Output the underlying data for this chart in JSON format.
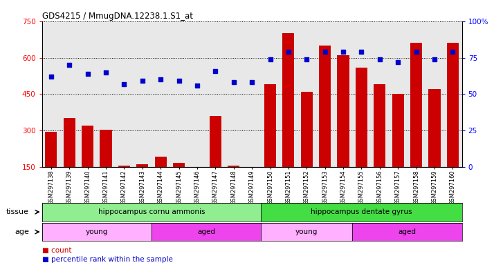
{
  "title": "GDS4215 / MmugDNA.12238.1.S1_at",
  "samples": [
    "GSM297138",
    "GSM297139",
    "GSM297140",
    "GSM297141",
    "GSM297142",
    "GSM297143",
    "GSM297144",
    "GSM297145",
    "GSM297146",
    "GSM297147",
    "GSM297148",
    "GSM297149",
    "GSM297150",
    "GSM297151",
    "GSM297152",
    "GSM297153",
    "GSM297154",
    "GSM297155",
    "GSM297156",
    "GSM297157",
    "GSM297158",
    "GSM297159",
    "GSM297160"
  ],
  "count": [
    296,
    352,
    320,
    302,
    155,
    162,
    192,
    166,
    148,
    360,
    155,
    148,
    490,
    700,
    460,
    650,
    610,
    560,
    490,
    450,
    660,
    470,
    660
  ],
  "percentile": [
    62,
    70,
    64,
    65,
    57,
    59,
    60,
    59,
    56,
    66,
    58,
    58,
    74,
    79,
    74,
    79,
    79,
    79,
    74,
    72,
    79,
    74,
    79
  ],
  "ylim_left": [
    150,
    750
  ],
  "ylim_right": [
    0,
    100
  ],
  "yticks_left": [
    150,
    300,
    450,
    600,
    750
  ],
  "yticks_right": [
    0,
    25,
    50,
    75,
    100
  ],
  "ytick_labels_left": [
    "150",
    "300",
    "450",
    "600",
    "750"
  ],
  "ytick_labels_right": [
    "0",
    "25",
    "50",
    "75",
    "100%"
  ],
  "tissue_groups": [
    {
      "label": "hippocampus cornu ammonis",
      "start": 0,
      "end": 12,
      "color": "#90EE90"
    },
    {
      "label": "hippocampus dentate gyrus",
      "start": 12,
      "end": 23,
      "color": "#44DD44"
    }
  ],
  "age_groups": [
    {
      "label": "young",
      "start": 0,
      "end": 6,
      "color": "#FFB0FF"
    },
    {
      "label": "aged",
      "start": 6,
      "end": 12,
      "color": "#EE44EE"
    },
    {
      "label": "young",
      "start": 12,
      "end": 17,
      "color": "#FFB0FF"
    },
    {
      "label": "aged",
      "start": 17,
      "end": 23,
      "color": "#EE44EE"
    }
  ],
  "bar_color": "#CC0000",
  "dot_color": "#0000CC",
  "bg_color": "#E8E8E8",
  "tissue_label": "tissue",
  "age_label": "age",
  "legend_count": "count",
  "legend_pct": "percentile rank within the sample"
}
